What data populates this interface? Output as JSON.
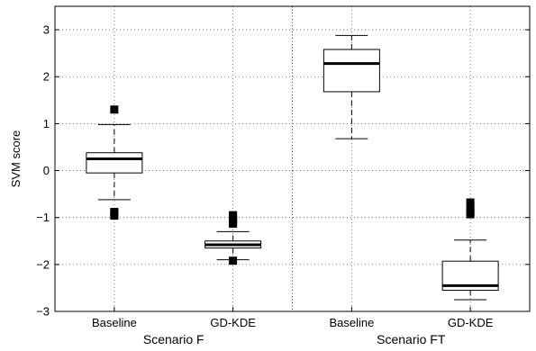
{
  "chart_data": {
    "type": "box",
    "title": "",
    "xlabel": "",
    "ylabel": "SVM score",
    "ylim": [
      -3,
      3.5
    ],
    "yticks": [
      -3,
      -2,
      -1,
      0,
      1,
      2,
      3
    ],
    "grid": true,
    "groups": [
      {
        "label": "Scenario F",
        "boxes": [
          {
            "category": "Baseline",
            "whisker_low": -0.62,
            "q1": -0.05,
            "median": 0.25,
            "q3": 0.38,
            "whisker_high": 0.98,
            "outliers": [
              1.3,
              -0.88,
              -0.92,
              -0.96
            ]
          },
          {
            "category": "GD-KDE",
            "whisker_low": -1.9,
            "q1": -1.65,
            "median": -1.58,
            "q3": -1.5,
            "whisker_high": -1.3,
            "outliers": [
              -0.95,
              -1.0,
              -1.05,
              -1.1,
              -1.13,
              -1.92
            ]
          }
        ]
      },
      {
        "label": "Scenario FT",
        "boxes": [
          {
            "category": "Baseline",
            "whisker_low": 0.68,
            "q1": 1.68,
            "median": 2.28,
            "q3": 2.58,
            "whisker_high": 2.88,
            "outliers": []
          },
          {
            "category": "GD-KDE",
            "whisker_low": -2.75,
            "q1": -2.55,
            "median": -2.45,
            "q3": -1.93,
            "whisker_high": -1.48,
            "outliers": [
              -0.68,
              -0.78,
              -0.88,
              -0.93
            ]
          }
        ]
      }
    ]
  }
}
